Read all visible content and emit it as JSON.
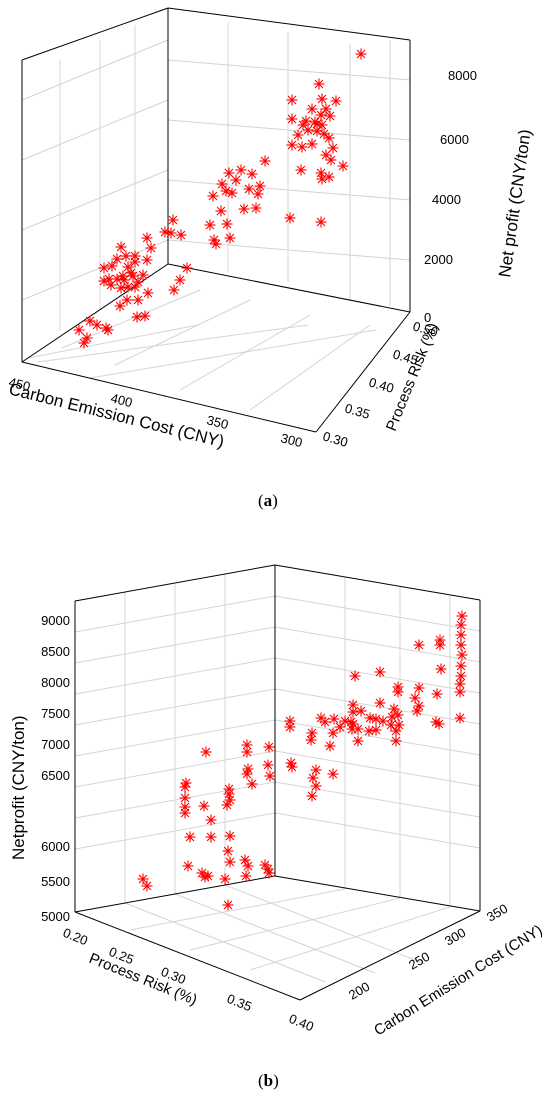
{
  "chart_data": [
    {
      "type": "scatter",
      "projection": "3d",
      "panel_label": "a",
      "xlabel": "Carbon Emission Cost (CNY)",
      "ylabel": "Process Risk (%)",
      "zlabel": "Net profit (CNY/ton)",
      "x_ticks": [
        "450",
        "400",
        "350",
        "300"
      ],
      "y_ticks": [
        "0.30",
        "0.35",
        "0.40",
        "0.45",
        "0.50"
      ],
      "z_ticks": [
        "0",
        "2000",
        "4000",
        "6000",
        "8000"
      ],
      "grid": true,
      "marker": "asterisk",
      "marker_color": "#ff0000",
      "points_screen": [
        [
          361,
          54
        ],
        [
          319,
          84
        ],
        [
          322,
          99
        ],
        [
          292,
          100
        ],
        [
          336,
          101
        ],
        [
          312,
          109
        ],
        [
          326,
          109
        ],
        [
          321,
          115
        ],
        [
          330,
          116
        ],
        [
          292,
          119
        ],
        [
          306,
          121
        ],
        [
          315,
          122
        ],
        [
          317,
          124
        ],
        [
          322,
          125
        ],
        [
          303,
          125
        ],
        [
          308,
          130
        ],
        [
          317,
          131
        ],
        [
          298,
          135
        ],
        [
          324,
          134
        ],
        [
          329,
          138
        ],
        [
          312,
          144
        ],
        [
          292,
          145
        ],
        [
          302,
          147
        ],
        [
          333,
          148
        ],
        [
          326,
          155
        ],
        [
          331,
          160
        ],
        [
          343,
          166
        ],
        [
          301,
          170
        ],
        [
          321,
          173
        ],
        [
          329,
          177
        ],
        [
          322,
          179
        ],
        [
          265,
          161
        ],
        [
          252,
          174
        ],
        [
          241,
          170
        ],
        [
          229,
          173
        ],
        [
          236,
          180
        ],
        [
          222,
          184
        ],
        [
          260,
          186
        ],
        [
          249,
          189
        ],
        [
          226,
          191
        ],
        [
          213,
          196
        ],
        [
          232,
          193
        ],
        [
          258,
          194
        ],
        [
          244,
          209
        ],
        [
          221,
          211
        ],
        [
          227,
          224
        ],
        [
          210,
          225
        ],
        [
          256,
          208
        ],
        [
          214,
          240
        ],
        [
          230,
          238
        ],
        [
          216,
          244
        ],
        [
          290,
          218
        ],
        [
          321,
          222
        ],
        [
          165,
          232
        ],
        [
          173,
          220
        ],
        [
          171,
          233
        ],
        [
          181,
          235
        ],
        [
          147,
          238
        ],
        [
          151,
          248
        ],
        [
          187,
          268
        ],
        [
          121,
          247
        ],
        [
          126,
          256
        ],
        [
          117,
          259
        ],
        [
          135,
          256
        ],
        [
          147,
          260
        ],
        [
          135,
          262
        ],
        [
          112,
          266
        ],
        [
          104,
          268
        ],
        [
          128,
          267
        ],
        [
          131,
          273
        ],
        [
          123,
          276
        ],
        [
          143,
          275
        ],
        [
          109,
          279
        ],
        [
          117,
          279
        ],
        [
          133,
          276
        ],
        [
          124,
          280
        ],
        [
          104,
          281
        ],
        [
          111,
          285
        ],
        [
          138,
          282
        ],
        [
          121,
          288
        ],
        [
          128,
          287
        ],
        [
          135,
          287
        ],
        [
          180,
          280
        ],
        [
          174,
          290
        ],
        [
          148,
          293
        ],
        [
          127,
          300
        ],
        [
          138,
          300
        ],
        [
          120,
          306
        ],
        [
          137,
          317
        ],
        [
          145,
          316
        ],
        [
          90,
          321
        ],
        [
          97,
          325
        ],
        [
          106,
          328
        ],
        [
          108,
          330
        ],
        [
          79,
          330
        ],
        [
          87,
          338
        ],
        [
          84,
          343
        ]
      ]
    },
    {
      "type": "scatter",
      "projection": "3d",
      "panel_label": "b",
      "xlabel": "Process Risk (%)",
      "ylabel": "Carbon Emission Cost (CNY)",
      "zlabel": "Netprofit (CNY/ton)",
      "x_ticks": [
        "0.20",
        "0.25",
        "0.30",
        "0.35",
        "0.40"
      ],
      "y_ticks": [
        "200",
        "250",
        "300",
        "350"
      ],
      "z_ticks": [
        "5000",
        "5500",
        "6000",
        "6500",
        "7000",
        "7500",
        "8000",
        "8500",
        "9000"
      ],
      "grid": true,
      "marker": "asterisk",
      "marker_color": "#ff0000",
      "points_screen": [
        [
          462,
          616
        ],
        [
          461,
          625
        ],
        [
          461,
          635
        ],
        [
          461,
          645
        ],
        [
          440,
          645
        ],
        [
          440,
          640
        ],
        [
          419,
          645
        ],
        [
          462,
          655
        ],
        [
          461,
          666
        ],
        [
          461,
          676
        ],
        [
          441,
          669
        ],
        [
          460,
          684
        ],
        [
          460,
          692
        ],
        [
          419,
          688
        ],
        [
          437,
          694
        ],
        [
          380,
          672
        ],
        [
          355,
          676
        ],
        [
          398,
          687
        ],
        [
          398,
          692
        ],
        [
          415,
          698
        ],
        [
          419,
          706
        ],
        [
          417,
          711
        ],
        [
          394,
          709
        ],
        [
          380,
          703
        ],
        [
          398,
          715
        ],
        [
          370,
          718
        ],
        [
          376,
          719
        ],
        [
          383,
          721
        ],
        [
          392,
          717
        ],
        [
          353,
          705
        ],
        [
          361,
          711
        ],
        [
          353,
          712
        ],
        [
          351,
          722
        ],
        [
          376,
          730
        ],
        [
          396,
          731
        ],
        [
          399,
          725
        ],
        [
          391,
          725
        ],
        [
          369,
          731
        ],
        [
          358,
          729
        ],
        [
          353,
          724
        ],
        [
          352,
          729
        ],
        [
          358,
          741
        ],
        [
          340,
          727
        ],
        [
          345,
          721
        ],
        [
          325,
          722
        ],
        [
          334,
          719
        ],
        [
          321,
          718
        ],
        [
          333,
          733
        ],
        [
          330,
          746
        ],
        [
          312,
          733
        ],
        [
          311,
          740
        ],
        [
          396,
          741
        ],
        [
          439,
          724
        ],
        [
          460,
          718
        ],
        [
          436,
          722
        ],
        [
          290,
          721
        ],
        [
          290,
          727
        ],
        [
          269,
          747
        ],
        [
          247,
          745
        ],
        [
          247,
          752
        ],
        [
          291,
          763
        ],
        [
          292,
          767
        ],
        [
          316,
          770
        ],
        [
          333,
          774
        ],
        [
          313,
          778
        ],
        [
          316,
          786
        ],
        [
          312,
          796
        ],
        [
          248,
          769
        ],
        [
          268,
          765
        ],
        [
          270,
          776
        ],
        [
          247,
          774
        ],
        [
          252,
          784
        ],
        [
          229,
          789
        ],
        [
          206,
          752
        ],
        [
          186,
          783
        ],
        [
          185,
          787
        ],
        [
          185,
          798
        ],
        [
          185,
          807
        ],
        [
          185,
          813
        ],
        [
          229,
          794
        ],
        [
          230,
          800
        ],
        [
          227,
          805
        ],
        [
          204,
          806
        ],
        [
          211,
          820
        ],
        [
          190,
          837
        ],
        [
          211,
          837
        ],
        [
          230,
          836
        ],
        [
          228,
          851
        ],
        [
          188,
          866
        ],
        [
          230,
          862
        ],
        [
          202,
          873
        ],
        [
          205,
          877
        ],
        [
          208,
          876
        ],
        [
          245,
          860
        ],
        [
          248,
          866
        ],
        [
          265,
          865
        ],
        [
          268,
          869
        ],
        [
          269,
          873
        ],
        [
          246,
          876
        ],
        [
          225,
          879
        ],
        [
          143,
          879
        ],
        [
          147,
          886
        ],
        [
          228,
          905
        ]
      ]
    }
  ]
}
